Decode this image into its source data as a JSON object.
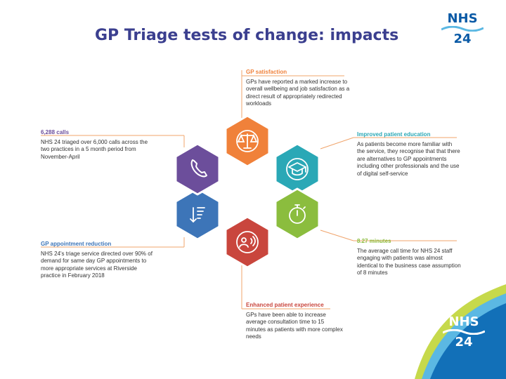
{
  "title": "GP Triage tests of change: impacts",
  "logo": {
    "word": "NHS",
    "number": "24"
  },
  "colors": {
    "title": "#3b3f8f",
    "orange": "#f0813a",
    "teal": "#2aa8b6",
    "green": "#8bbd3e",
    "red": "#c9463d",
    "blue": "#3d75b8",
    "purple": "#6c4e9b",
    "callout_line": "#f0a46b",
    "wave_dark": "#1270b8",
    "wave_light": "#5bb8e3",
    "wave_green": "#c6d94b"
  },
  "hexes": [
    {
      "id": "gp-satisfaction",
      "icon": "scales-icon",
      "color": "orange"
    },
    {
      "id": "patient-education",
      "icon": "graduation-cap-icon",
      "color": "teal"
    },
    {
      "id": "call-time",
      "icon": "stopwatch-icon",
      "color": "green"
    },
    {
      "id": "patient-experience",
      "icon": "patient-speaking-icon",
      "color": "red"
    },
    {
      "id": "appointment-reduction",
      "icon": "sort-list-icon",
      "color": "blue"
    },
    {
      "id": "calls",
      "icon": "phone-icon",
      "color": "purple"
    }
  ],
  "blocks": {
    "gp_satisfaction": {
      "head": "GP satisfaction",
      "body": "GPs have reported a marked increase to overall wellbeing and job satisfaction as a direct result of appropriately redirected workloads"
    },
    "calls": {
      "head": "6,288 calls",
      "body": "NHS 24 triaged over 6,000 calls across the two practices in a 5 month period from November-April"
    },
    "patient_education": {
      "head": "Improved patient education",
      "body": "As patients become more familiar with the service, they recognise that that there are alternatives to GP appointments including other professionals and the use of digital self-service"
    },
    "appointment_reduction": {
      "head": "GP appointment reduction",
      "body": "NHS 24's triage service directed over 90% of demand for same day GP appointments to more appropriate services at Riverside practice in February 2018"
    },
    "call_time": {
      "head": "8.27 minutes",
      "body": "The average call time for NHS 24 staff engaging with patients was almost identical to the business case assumption of 8 minutes"
    },
    "patient_experience": {
      "head": "Enhanced patient experience",
      "body": "GPs have been able to increase average consultation time to 15 minutes as patients with more complex needs"
    }
  }
}
